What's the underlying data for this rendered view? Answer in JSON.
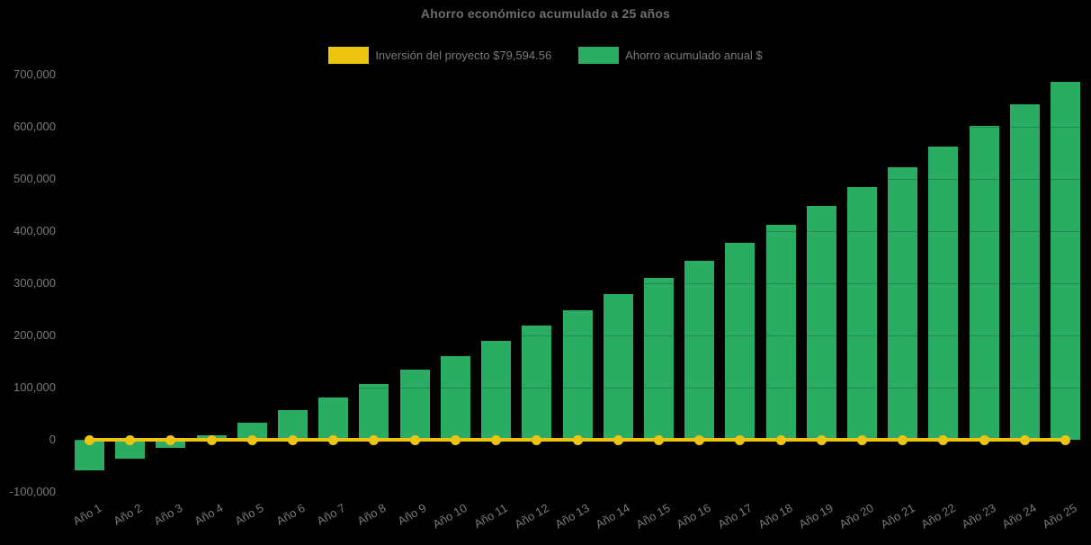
{
  "background_color": "#000000",
  "title": "Ahorro económico acumulado a 25 años",
  "legend": {
    "position": "top",
    "items": [
      {
        "label": "Inversión del proyecto $79,594.56",
        "color": "#EDC511",
        "series_type": "line"
      },
      {
        "label": "Ahorro acumulado anual $",
        "color": "#2BAC63",
        "series_type": "bar"
      }
    ]
  },
  "chart_data": {
    "type": "bar",
    "title": "Ahorro económico acumulado a 25 años",
    "categories": [
      "Año 1",
      "Año 2",
      "Año 3",
      "Año 4",
      "Año 5",
      "Año 6",
      "Año 7",
      "Año 8",
      "Año 9",
      "Año 10",
      "Año 11",
      "Año 12",
      "Año 13",
      "Año 14",
      "Año 15",
      "Año 16",
      "Año 17",
      "Año 18",
      "Año 19",
      "Año 20",
      "Año 21",
      "Año 22",
      "Año 23",
      "Año 24",
      "Año 25"
    ],
    "series": [
      {
        "name": "Inversión del proyecto $79,594.56",
        "type": "line",
        "color": "#EDC511",
        "marker": "circle",
        "investment_amount_label": "$79,594.56",
        "values": [
          0,
          0,
          0,
          0,
          0,
          0,
          0,
          0,
          0,
          0,
          0,
          0,
          0,
          0,
          0,
          0,
          0,
          0,
          0,
          0,
          0,
          0,
          0,
          0,
          0
        ]
      },
      {
        "name": "Ahorro acumulado anual $",
        "type": "bar",
        "color": "#2BAC63",
        "values": [
          -58595,
          -36965,
          -14686,
          8262,
          31897,
          56242,
          81317,
          107145,
          133747,
          161147,
          189369,
          218438,
          248379,
          279218,
          310983,
          343700,
          377399,
          412109,
          447860,
          484683,
          522612,
          561678,
          601916,
          643361,
          686050
        ]
      }
    ],
    "xlabel": "",
    "ylabel": "",
    "ylim": [
      -100000,
      700000
    ],
    "y_tick_values": [
      700000,
      600000,
      500000,
      400000,
      300000,
      200000,
      100000,
      0,
      -100000
    ],
    "y_tick_labels": [
      "700,000",
      "600,000",
      "500,000",
      "400,000",
      "300,000",
      "200,000",
      "100,000",
      "0",
      "-100,000"
    ],
    "x_tick_rotation_deg": -30,
    "grid": false,
    "legend_position": "top",
    "text_color": "#7a7a7a",
    "title_color": "#6e6e6e"
  }
}
